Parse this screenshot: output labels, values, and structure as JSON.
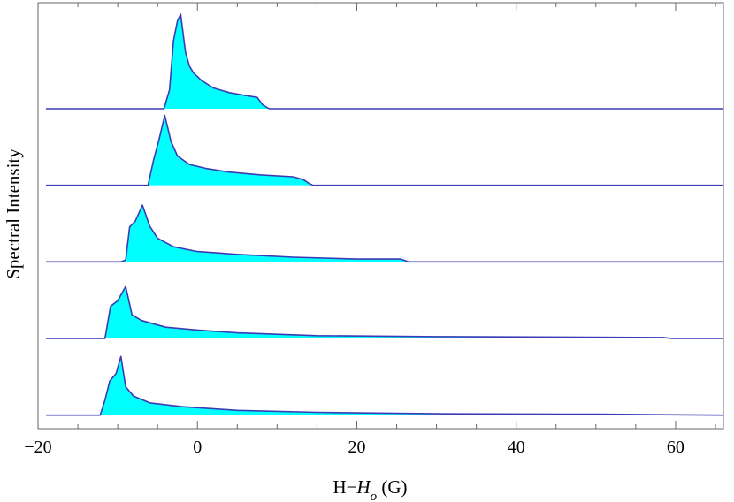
{
  "chart_data": {
    "type": "area",
    "xlabel_parts": [
      "H−",
      "H",
      "o",
      " (G)"
    ],
    "ylabel": "Spectral Intensity",
    "xlim": [
      -20,
      66
    ],
    "xticks": [
      {
        "value": -20,
        "label": "−20"
      },
      {
        "value": 0,
        "label": "0"
      },
      {
        "value": 20,
        "label": "20"
      },
      {
        "value": 40,
        "label": "40"
      },
      {
        "value": 60,
        "label": "60"
      }
    ],
    "minor_xtick_step": 5,
    "y_ticks_shown": false,
    "x_range_of_traces": [
      -19,
      66
    ],
    "trace_height": 1.0,
    "trace_spacing": 0.81,
    "fill_color": "#00ffff",
    "line_color": "#3b3bb5",
    "series": [
      {
        "points": [
          [
            -4.2,
            0
          ],
          [
            -3.5,
            0.2
          ],
          [
            -3,
            0.72
          ],
          [
            -2.5,
            0.93
          ],
          [
            -2.1,
            1.0
          ],
          [
            -1.5,
            0.6
          ],
          [
            -1,
            0.45
          ],
          [
            -0.5,
            0.38
          ],
          [
            0.5,
            0.3
          ],
          [
            2,
            0.22
          ],
          [
            4,
            0.17
          ],
          [
            6,
            0.14
          ],
          [
            7.5,
            0.12
          ],
          [
            8.2,
            0.04
          ],
          [
            9,
            0
          ]
        ]
      },
      {
        "points": [
          [
            -6.2,
            0
          ],
          [
            -5.5,
            0.27
          ],
          [
            -4.8,
            0.49
          ],
          [
            -4.1,
            0.74
          ],
          [
            -3.3,
            0.46
          ],
          [
            -2.5,
            0.31
          ],
          [
            -1,
            0.22
          ],
          [
            1,
            0.18
          ],
          [
            4,
            0.14
          ],
          [
            8,
            0.11
          ],
          [
            12,
            0.09
          ],
          [
            13.3,
            0.06
          ],
          [
            14,
            0.02
          ],
          [
            14.5,
            0
          ]
        ]
      },
      {
        "points": [
          [
            -9.6,
            0
          ],
          [
            -9,
            0.02
          ],
          [
            -8.5,
            0.37
          ],
          [
            -7.8,
            0.43
          ],
          [
            -6.9,
            0.6
          ],
          [
            -6,
            0.38
          ],
          [
            -5,
            0.25
          ],
          [
            -3,
            0.16
          ],
          [
            0,
            0.11
          ],
          [
            5,
            0.08
          ],
          [
            12,
            0.05
          ],
          [
            20,
            0.03
          ],
          [
            25.5,
            0.03
          ],
          [
            26.5,
            0
          ]
        ]
      },
      {
        "points": [
          [
            -11.6,
            0
          ],
          [
            -10.9,
            0.34
          ],
          [
            -10,
            0.4
          ],
          [
            -9,
            0.55
          ],
          [
            -8.2,
            0.25
          ],
          [
            -7,
            0.19
          ],
          [
            -4,
            0.12
          ],
          [
            0,
            0.09
          ],
          [
            5,
            0.06
          ],
          [
            15,
            0.03
          ],
          [
            30,
            0.02
          ],
          [
            58.5,
            0.01
          ],
          [
            59.5,
            0
          ],
          [
            66,
            0
          ]
        ]
      },
      {
        "points": [
          [
            -12.2,
            0
          ],
          [
            -11.6,
            0.16
          ],
          [
            -11,
            0.36
          ],
          [
            -10.2,
            0.44
          ],
          [
            -9.6,
            0.62
          ],
          [
            -9,
            0.3
          ],
          [
            -8,
            0.2
          ],
          [
            -6,
            0.13
          ],
          [
            -2,
            0.09
          ],
          [
            5,
            0.05
          ],
          [
            15,
            0.03
          ],
          [
            30,
            0.015
          ],
          [
            50,
            0.01
          ],
          [
            66,
            0
          ]
        ]
      }
    ]
  }
}
